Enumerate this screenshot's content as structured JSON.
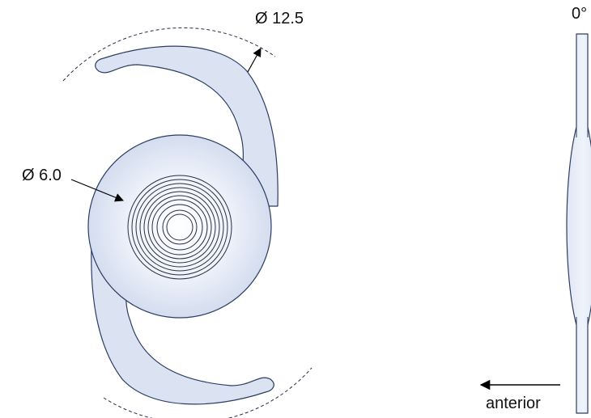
{
  "labels": {
    "haptic_diameter": "Ø 12.5",
    "optic_diameter": "Ø 6.0",
    "angle": "0°",
    "direction": "anterior"
  },
  "colors": {
    "fill": "#dbe3f3",
    "stroke": "#2c3d62",
    "ring": "#2b2d44",
    "text": "#111111"
  },
  "diffractive_rings": 10
}
